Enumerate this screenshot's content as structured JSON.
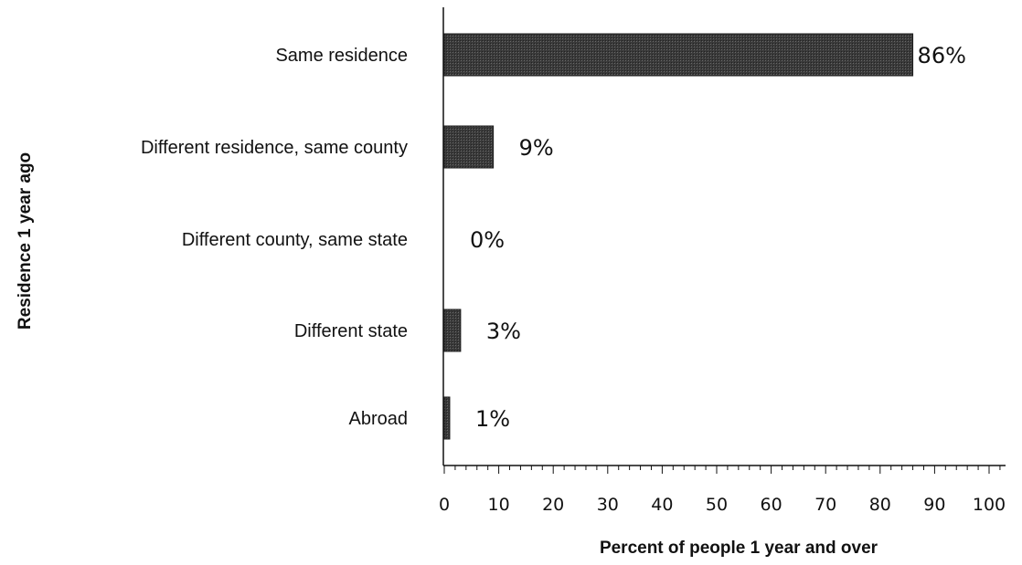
{
  "chart_data": {
    "type": "bar",
    "orientation": "horizontal",
    "categories": [
      "Same residence",
      "Different residence, same county",
      "Different county, same state",
      "Different state",
      "Abroad"
    ],
    "values": [
      86,
      9,
      0,
      3,
      1
    ],
    "value_labels": [
      "86%",
      "9%",
      "0%",
      "3%",
      "1%"
    ],
    "xlabel": "Percent of people 1 year and over",
    "ylabel": "Residence 1 year ago",
    "xlim": [
      0,
      100
    ],
    "xticks": [
      0,
      10,
      20,
      30,
      40,
      50,
      60,
      70,
      80,
      90,
      100
    ],
    "minor_ticks_per_major": 5,
    "bar_color": "#3a3a3a",
    "grid": false,
    "legend": "none"
  }
}
